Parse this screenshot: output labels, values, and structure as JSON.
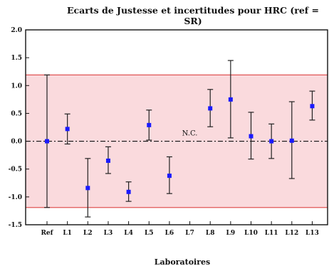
{
  "chart_data": {
    "type": "scatter",
    "title": "Ecarts de Justesse et incertitudes pour HRC (ref = SR)",
    "xlabel": "Laboratoires",
    "ylabel": "",
    "ylim": [
      -1.5,
      2.0
    ],
    "y_ticks": [
      "2.0",
      "1.5",
      "1.0",
      "0.5",
      "0.0",
      "-0.5",
      "-1.0",
      "-1.5"
    ],
    "y_tick_values": [
      2.0,
      1.5,
      1.0,
      0.5,
      0.0,
      -0.5,
      -1.0,
      -1.5
    ],
    "categories": [
      "Ref",
      "L1",
      "L2",
      "L3",
      "L4",
      "L5",
      "L6",
      "L7",
      "L8",
      "L9",
      "L10",
      "L11",
      "L12",
      "L13"
    ],
    "values": [
      0.0,
      0.22,
      -0.84,
      -0.35,
      -0.91,
      0.29,
      -0.62,
      null,
      0.59,
      0.75,
      0.09,
      0.0,
      0.01,
      0.63
    ],
    "error_low": [
      -1.19,
      -0.05,
      -1.36,
      -0.58,
      -1.08,
      0.02,
      -0.94,
      null,
      0.26,
      0.06,
      -0.32,
      -0.31,
      -0.67,
      0.38
    ],
    "error_high": [
      1.19,
      0.49,
      -0.31,
      -0.1,
      -0.73,
      0.56,
      -0.28,
      null,
      0.93,
      1.45,
      0.52,
      0.31,
      0.71,
      0.9
    ],
    "band": [
      -1.19,
      1.19
    ],
    "reference_line": 0.0,
    "annotation": "N.C.",
    "colors": {
      "marker": "#1a1aff",
      "band_fill": "#fadadd",
      "band_line": "#e05555",
      "error_bar": "#222222"
    },
    "grid": false
  }
}
